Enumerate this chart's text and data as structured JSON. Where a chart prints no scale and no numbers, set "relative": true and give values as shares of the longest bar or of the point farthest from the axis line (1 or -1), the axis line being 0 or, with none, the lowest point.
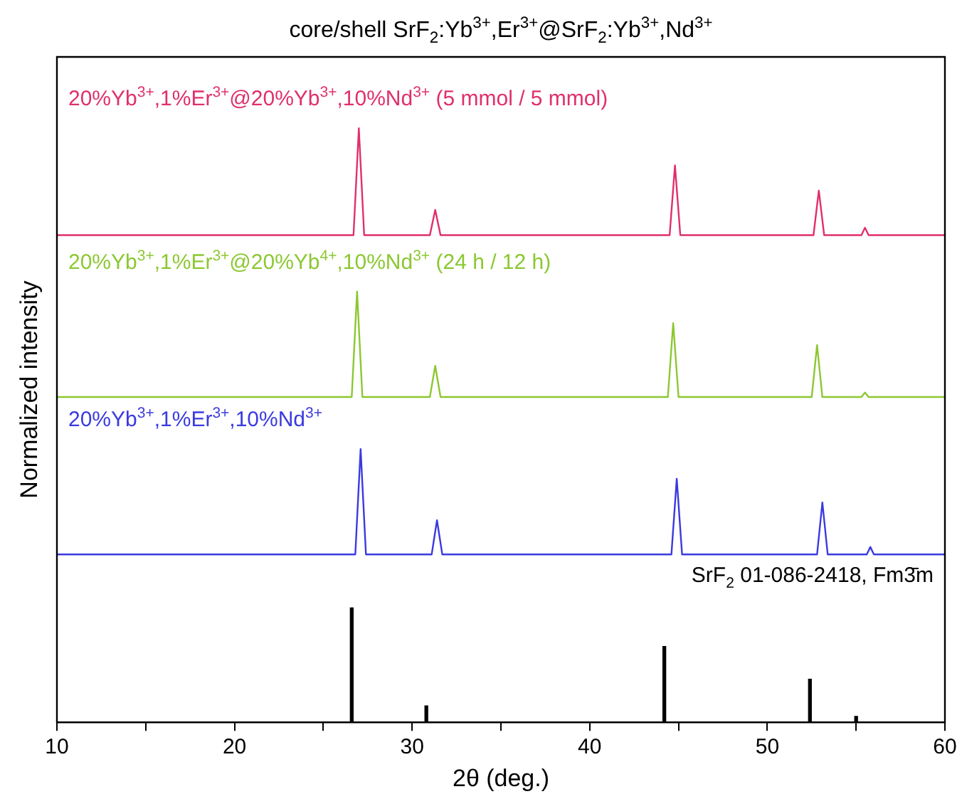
{
  "chart_data": {
    "type": "line",
    "title": "core/shell SrF$_{2}$:Yb$^{3+}$,Er$^{3+}$@SrF$_{2}$:Yb$^{3+}$,Nd$^{3+}$",
    "xlabel": "2θ (deg.)",
    "ylabel": "Normalized intensity",
    "relative": true,
    "marker": "none",
    "xlim": [
      10,
      60
    ],
    "xticks": [
      10,
      {
        "value": 15,
        "label": null
      },
      20,
      {
        "value": 25,
        "label": null
      },
      30,
      {
        "value": 35,
        "label": null
      },
      40,
      {
        "value": 45,
        "label": null
      },
      50,
      {
        "value": 55,
        "label": null
      },
      60
    ],
    "series": [
      {
        "name": "20%Yb$^{3+}$,1%Er$^{3+}$@20%Yb$^{3+}$,10%Nd$^{3+}$ (5 mmol / 5 mmol)",
        "color": "#e0306a",
        "x": [
          10,
          26.7,
          27.0,
          27.3,
          31.0,
          31.3,
          31.6,
          44.5,
          44.8,
          45.1,
          52.6,
          52.9,
          53.2,
          55.3,
          55.5,
          55.7,
          60
        ],
        "values": [
          0.82,
          0.82,
          1.0,
          0.82,
          0.82,
          0.8625,
          0.82,
          0.82,
          0.9375,
          0.82,
          0.82,
          0.895,
          0.82,
          0.82,
          0.8325,
          0.82,
          0.82
        ]
      },
      {
        "name": "20%Yb$^{3+}$,1%Er$^{3+}$@20%Yb$^{4+}$,10%Nd$^{3+}$ (24 h / 12 h)",
        "color": "#8cc832",
        "x": [
          10,
          26.6,
          26.9,
          27.2,
          31.0,
          31.3,
          31.6,
          44.4,
          44.7,
          45.0,
          52.5,
          52.8,
          53.1,
          55.3,
          55.5,
          55.7,
          60
        ],
        "values": [
          0.5475,
          0.5475,
          0.725,
          0.5475,
          0.5475,
          0.6,
          0.5475,
          0.5475,
          0.672,
          0.5475,
          0.5475,
          0.635,
          0.5475,
          0.5475,
          0.555,
          0.5475,
          0.5475
        ]
      },
      {
        "name": "20%Yb$^{3+}$,1%Er$^{3+}$,10%Nd$^{3+}$",
        "color": "#3a3ae0",
        "x": [
          10,
          26.8,
          27.1,
          27.4,
          31.1,
          31.4,
          31.7,
          44.6,
          44.9,
          45.2,
          52.8,
          53.1,
          53.4,
          55.6,
          55.8,
          56.0,
          60
        ],
        "values": [
          0.2825,
          0.2825,
          0.46,
          0.2825,
          0.2825,
          0.34,
          0.2825,
          0.2825,
          0.41,
          0.2825,
          0.2825,
          0.37,
          0.2825,
          0.2825,
          0.295,
          0.2825,
          0.2825
        ]
      },
      {
        "name": "SrF$_{2}$ 01-086-2418, Fm3̄m",
        "type": "bar",
        "color": "#000000",
        "x": [
          26.6,
          30.8,
          44.2,
          52.4,
          55.0
        ],
        "values": [
          0.1925,
          0.0275,
          0.1275,
          0.0725,
          0.01
        ]
      }
    ]
  }
}
